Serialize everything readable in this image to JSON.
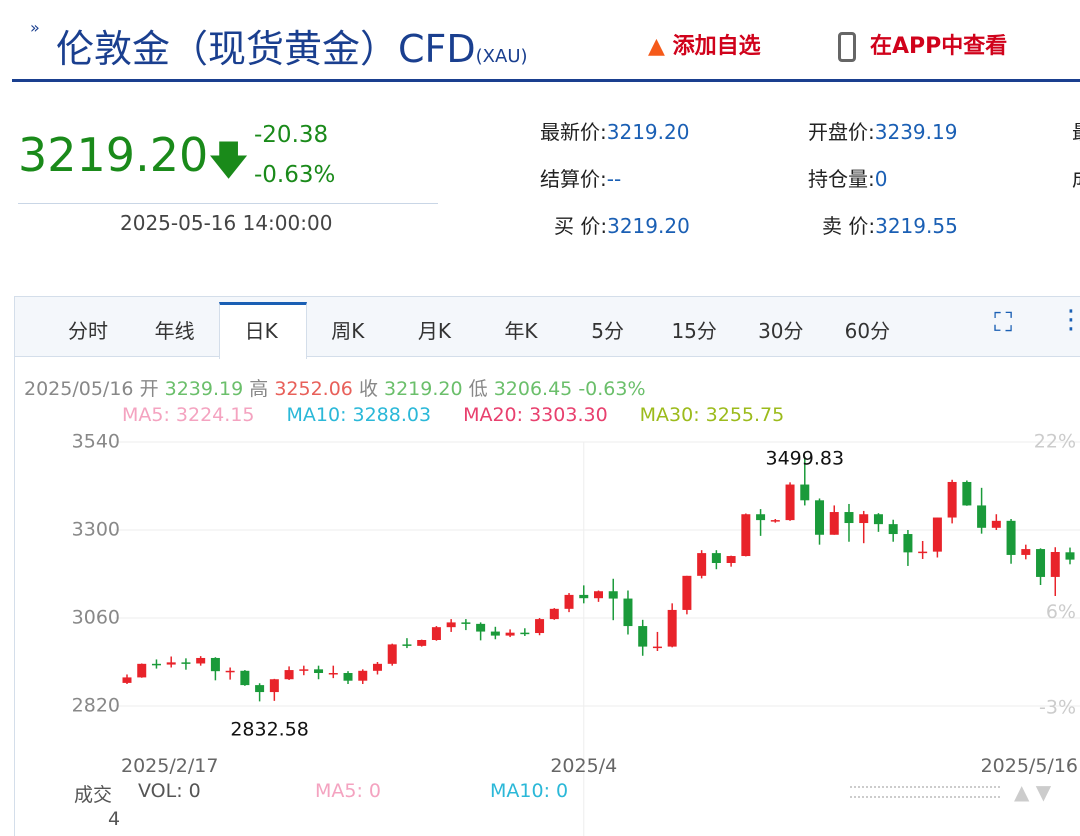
{
  "header": {
    "title": "伦敦金（现货黄金）CFD",
    "code": "(XAU)",
    "add_watch": "添加自选",
    "open_app": "在APP中查看"
  },
  "quote": {
    "price": "3219.20",
    "change": "-20.38",
    "change_pct": "-0.63%",
    "time": "2025-05-16 14:00:00",
    "fields": [
      [
        "最新价:",
        "3219.20"
      ],
      [
        "开盘价:",
        "3239.19"
      ],
      [
        "最",
        ""
      ],
      [
        "结算价:",
        "--"
      ],
      [
        "持仓量:",
        "0"
      ],
      [
        "成",
        ""
      ],
      [
        "买 价:",
        "3219.20"
      ],
      [
        "卖 价:",
        "3219.55"
      ]
    ]
  },
  "tabs": [
    "分时",
    "年线",
    "日K",
    "周K",
    "月K",
    "年K",
    "5分",
    "15分",
    "30分",
    "60分"
  ],
  "chart_info": {
    "date": "2025/05/16",
    "open_label": "开",
    "open": "3239.19",
    "high_label": "高",
    "high": "3252.06",
    "close_label": "收",
    "close": "3219.20",
    "low_label": "低",
    "low": "3206.45",
    "pct": "-0.63%",
    "ma": [
      [
        "MA5: 3224.15",
        "#f4a3c0"
      ],
      [
        "MA10: 3288.03",
        "#2bb8d8"
      ],
      [
        "MA20: 3303.30",
        "#e8406e"
      ],
      [
        "MA30: 3255.75",
        "#9cbb1c"
      ]
    ]
  },
  "volume": {
    "label": "成交",
    "vol": "VOL: 0",
    "ma5": "MA5: 0",
    "ma10": "MA10: 0",
    "scale": "4"
  },
  "chart_data": {
    "type": "candlestick",
    "categories": [
      "2025/2/17",
      null,
      null,
      null,
      null,
      null,
      null,
      null,
      null,
      null,
      null,
      null,
      null,
      null,
      null,
      null,
      null,
      null,
      null,
      null,
      null,
      null,
      null,
      null,
      null,
      null,
      null,
      null,
      null,
      null,
      null,
      "2025/4",
      null,
      null,
      null,
      null,
      null,
      null,
      null,
      null,
      null,
      null,
      null,
      null,
      null,
      null,
      null,
      null,
      null,
      null,
      null,
      null,
      null,
      null,
      null,
      null,
      null,
      null,
      null,
      null,
      null,
      null,
      null,
      null,
      "2025/5/16"
    ],
    "open": [
      2883,
      2898,
      2935,
      2933,
      2939,
      2936,
      2951,
      2915,
      2916,
      2877,
      2858,
      2893,
      2918,
      2920,
      2910,
      2910,
      2889,
      2916,
      2935,
      2988,
      2984,
      3000,
      3035,
      3048,
      3044,
      3023,
      3012,
      3020,
      3019,
      3057,
      3085,
      3123,
      3114,
      3133,
      3113,
      3038,
      2982,
      2982,
      3082,
      3175,
      3237,
      3210,
      3229,
      3343,
      3327,
      3327,
      3424,
      3381,
      3287,
      3349,
      3319,
      3343,
      3316,
      3289,
      3239,
      3241,
      3334,
      3431,
      3367,
      3306,
      3325,
      3232,
      3248,
      3172,
      3239.19
    ],
    "high": [
      2906,
      2936,
      2947,
      2955,
      2950,
      2956,
      2953,
      2925,
      2918,
      2882,
      2894,
      2928,
      2930,
      2930,
      2930,
      2915,
      2920,
      2940,
      2990,
      3005,
      3001,
      3038,
      3057,
      3057,
      3048,
      3036,
      3029,
      3032,
      3060,
      3087,
      3128,
      3149,
      3135,
      3167,
      3135,
      3055,
      3022,
      3100,
      3175,
      3245,
      3245,
      3230,
      3345,
      3357,
      3330,
      3430,
      3499.83,
      3386,
      3367,
      3371,
      3352,
      3346,
      3328,
      3300,
      3270,
      3334,
      3437,
      3435,
      3415,
      3343,
      3330,
      3260,
      3250,
      3253,
      3252.06
    ],
    "low": [
      2880,
      2897,
      2922,
      2925,
      2919,
      2930,
      2890,
      2892,
      2875,
      2832.58,
      2834,
      2891,
      2904,
      2893,
      2896,
      2880,
      2880,
      2906,
      2930,
      2978,
      2982,
      2998,
      3022,
      3027,
      2999,
      3002,
      3008,
      3011,
      3013,
      3055,
      3076,
      3100,
      3104,
      3054,
      3015,
      2957,
      2970,
      2980,
      3070,
      3168,
      3193,
      3200,
      3228,
      3284,
      3320,
      3325,
      3367,
      3260,
      3287,
      3268,
      3264,
      3295,
      3268,
      3202,
      3221,
      3225,
      3318,
      3366,
      3290,
      3300,
      3208,
      3220,
      3150,
      3120,
      3206.45
    ],
    "close": [
      2898,
      2935,
      2933,
      2939,
      2936,
      2951,
      2915,
      2916,
      2877,
      2858,
      2893,
      2918,
      2920,
      2910,
      2910,
      2889,
      2916,
      2935,
      2988,
      2984,
      3000,
      3035,
      3048,
      3044,
      3023,
      3012,
      3020,
      3019,
      3057,
      3085,
      3123,
      3114,
      3133,
      3113,
      3038,
      2982,
      2982,
      3082,
      3175,
      3237,
      3210,
      3229,
      3343,
      3327,
      3327,
      3424,
      3381,
      3287,
      3349,
      3319,
      3343,
      3316,
      3289,
      3239,
      3241,
      3334,
      3431,
      3367,
      3306,
      3325,
      3232,
      3248,
      3172,
      3240,
      3219.2
    ],
    "up_color": "#e8232a",
    "down_color": "#1a9a3a",
    "annotations": {
      "max": "3499.83",
      "min": "2832.58"
    },
    "ylim": [
      2820,
      3540
    ],
    "yticks": [
      2820,
      3060,
      3300,
      3540
    ],
    "y2lim": [
      -2.8,
      22
    ],
    "y2ticks": [
      {
        "value": -3,
        "label": "-3%"
      },
      {
        "value": 6,
        "label": "6%"
      },
      {
        "value": 22,
        "label": "22%"
      }
    ],
    "grid": true
  }
}
